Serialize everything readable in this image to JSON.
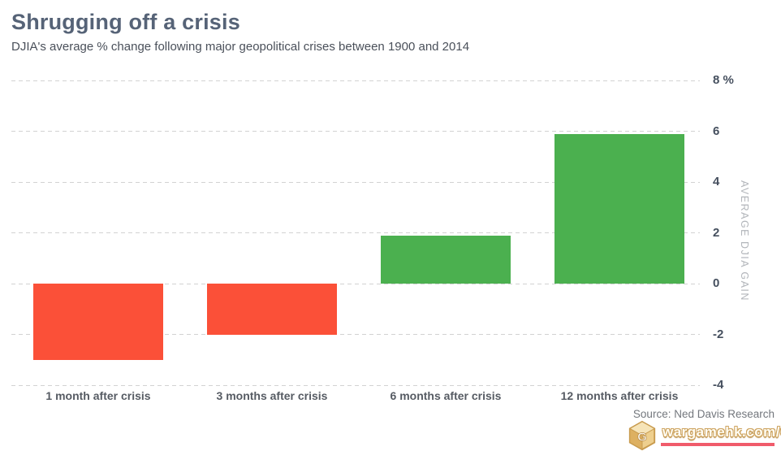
{
  "header": {
    "title": "Shrugging off a crisis",
    "subtitle": "DJIA's average % change following major geopolitical crises between 1900 and 2014"
  },
  "chart_data": {
    "type": "bar",
    "title": "Shrugging off a crisis",
    "subtitle": "DJIA's average % change following major geopolitical crises between 1900 and 2014",
    "categories": [
      "1 month after crisis",
      "3 months after crisis",
      "6 months after crisis",
      "12 months after crisis"
    ],
    "values": [
      -3.0,
      -2.0,
      1.9,
      5.9
    ],
    "xlabel": "",
    "ylabel": "AVERAGE DJIA GAIN",
    "ylim": [
      -4,
      8
    ],
    "y_ticks": [
      8,
      6,
      4,
      2,
      0,
      -2,
      -4
    ],
    "y_tick_labels": [
      "8 %",
      "6",
      "4",
      "2",
      "0",
      "-2",
      "-4"
    ],
    "grid": "dashed horizontal, axis labels on right",
    "legend": "none",
    "colors": {
      "positive": "#4bb04f",
      "negative": "#fb5038",
      "gridline": "#d2d2d2"
    }
  },
  "footer": {
    "source": "Source: Ned Davis Research",
    "watermark": {
      "text": "wargamehk.com/CGF",
      "icon": "gold-hexagon-logo",
      "underline_color": "#f05b6b"
    }
  }
}
